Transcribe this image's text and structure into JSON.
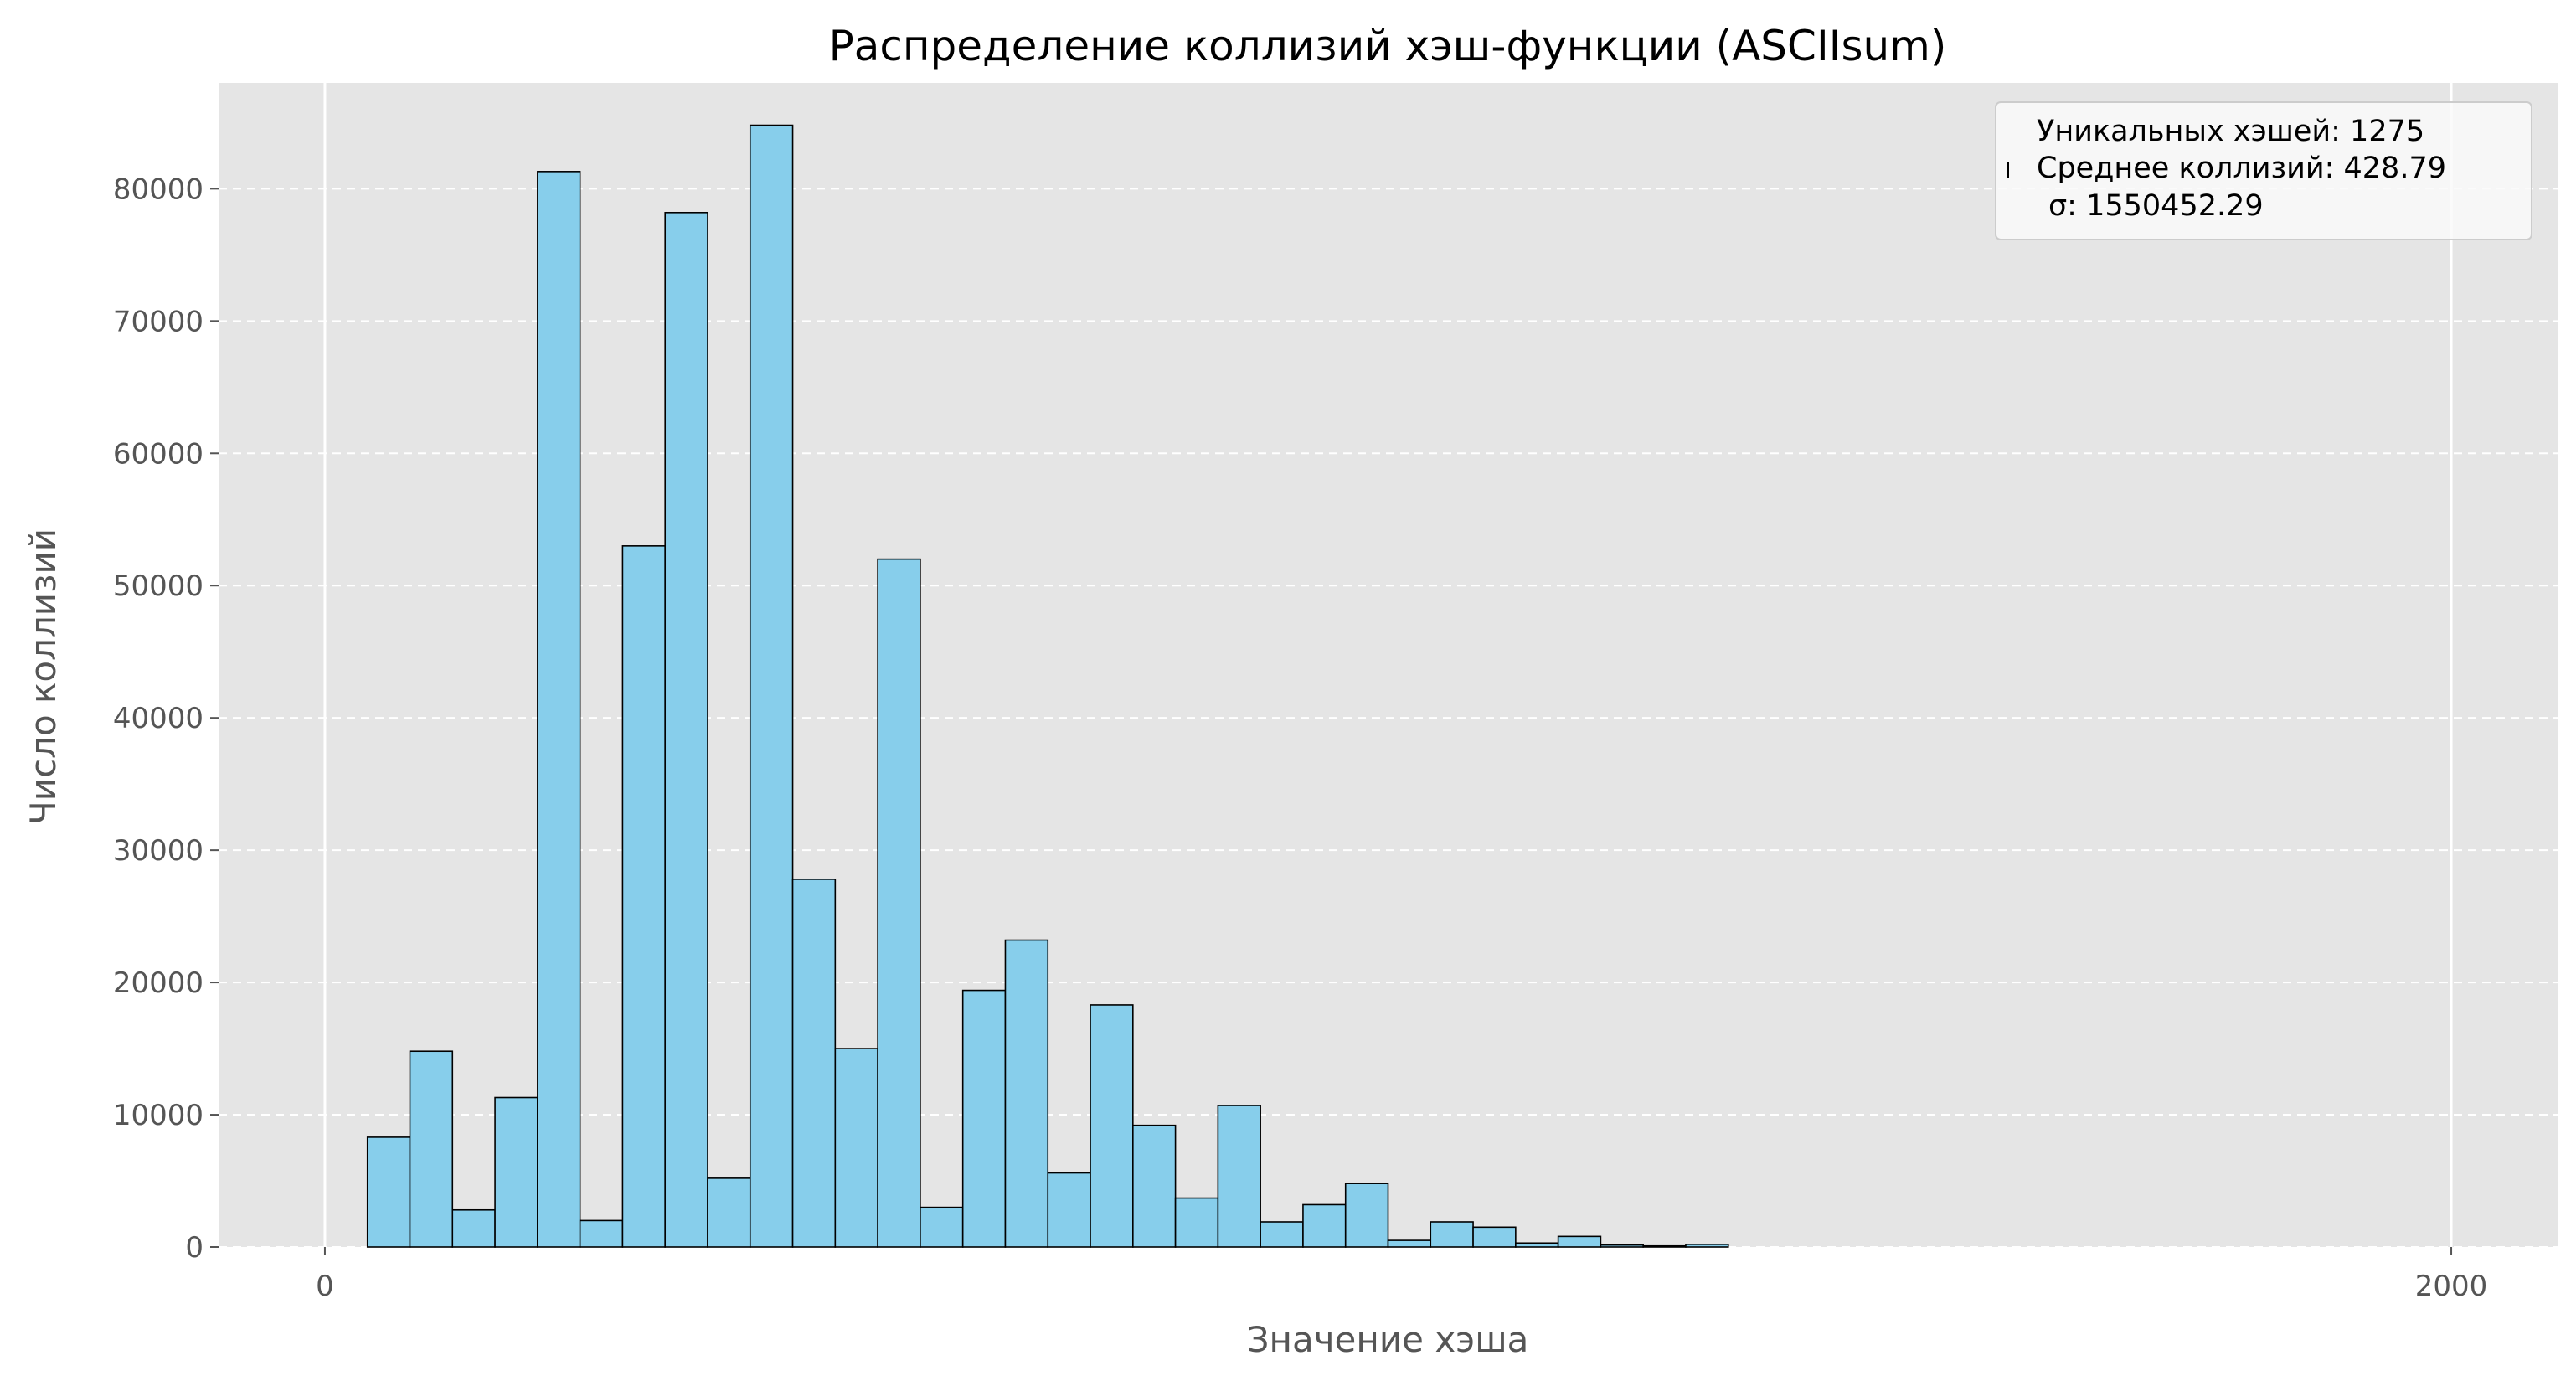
{
  "chart_data": {
    "type": "bar",
    "title": "Распределение коллизий хэш-функции (ASCIIsum)",
    "xlabel": "Значение хэша",
    "ylabel": "Число коллизий",
    "xlim": [
      -100,
      2100
    ],
    "ylim": [
      0,
      88000
    ],
    "xticks": [
      0,
      2000
    ],
    "xtick_labels": [
      "0",
      "2000"
    ],
    "yticks": [
      0,
      10000,
      20000,
      30000,
      40000,
      50000,
      60000,
      70000,
      80000
    ],
    "ytick_labels": [
      "0",
      "10000",
      "20000",
      "30000",
      "40000",
      "50000",
      "60000",
      "70000",
      "80000"
    ],
    "grid": "y-dashed, x-solid",
    "bin_start": 40,
    "bin_width": 40,
    "values": [
      8300,
      14800,
      2800,
      11300,
      81300,
      2000,
      53000,
      78200,
      5200,
      84800,
      27800,
      15000,
      52000,
      3000,
      19400,
      23200,
      5600,
      18300,
      9200,
      3700,
      10700,
      1900,
      3200,
      4800,
      500,
      1900,
      1500,
      300,
      800,
      150,
      80,
      200
    ],
    "legend": {
      "placement": "top-right",
      "lines": [
        "Уникальных хэшей: 1275",
        "Среднее коллизий: 428.79",
        "σ: 1550452.29"
      ]
    },
    "colors": {
      "bar_fill": "#87CEEB",
      "bar_edge": "#000000",
      "plot_background": "#E5E5E5",
      "grid": "#FFFFFF"
    }
  }
}
